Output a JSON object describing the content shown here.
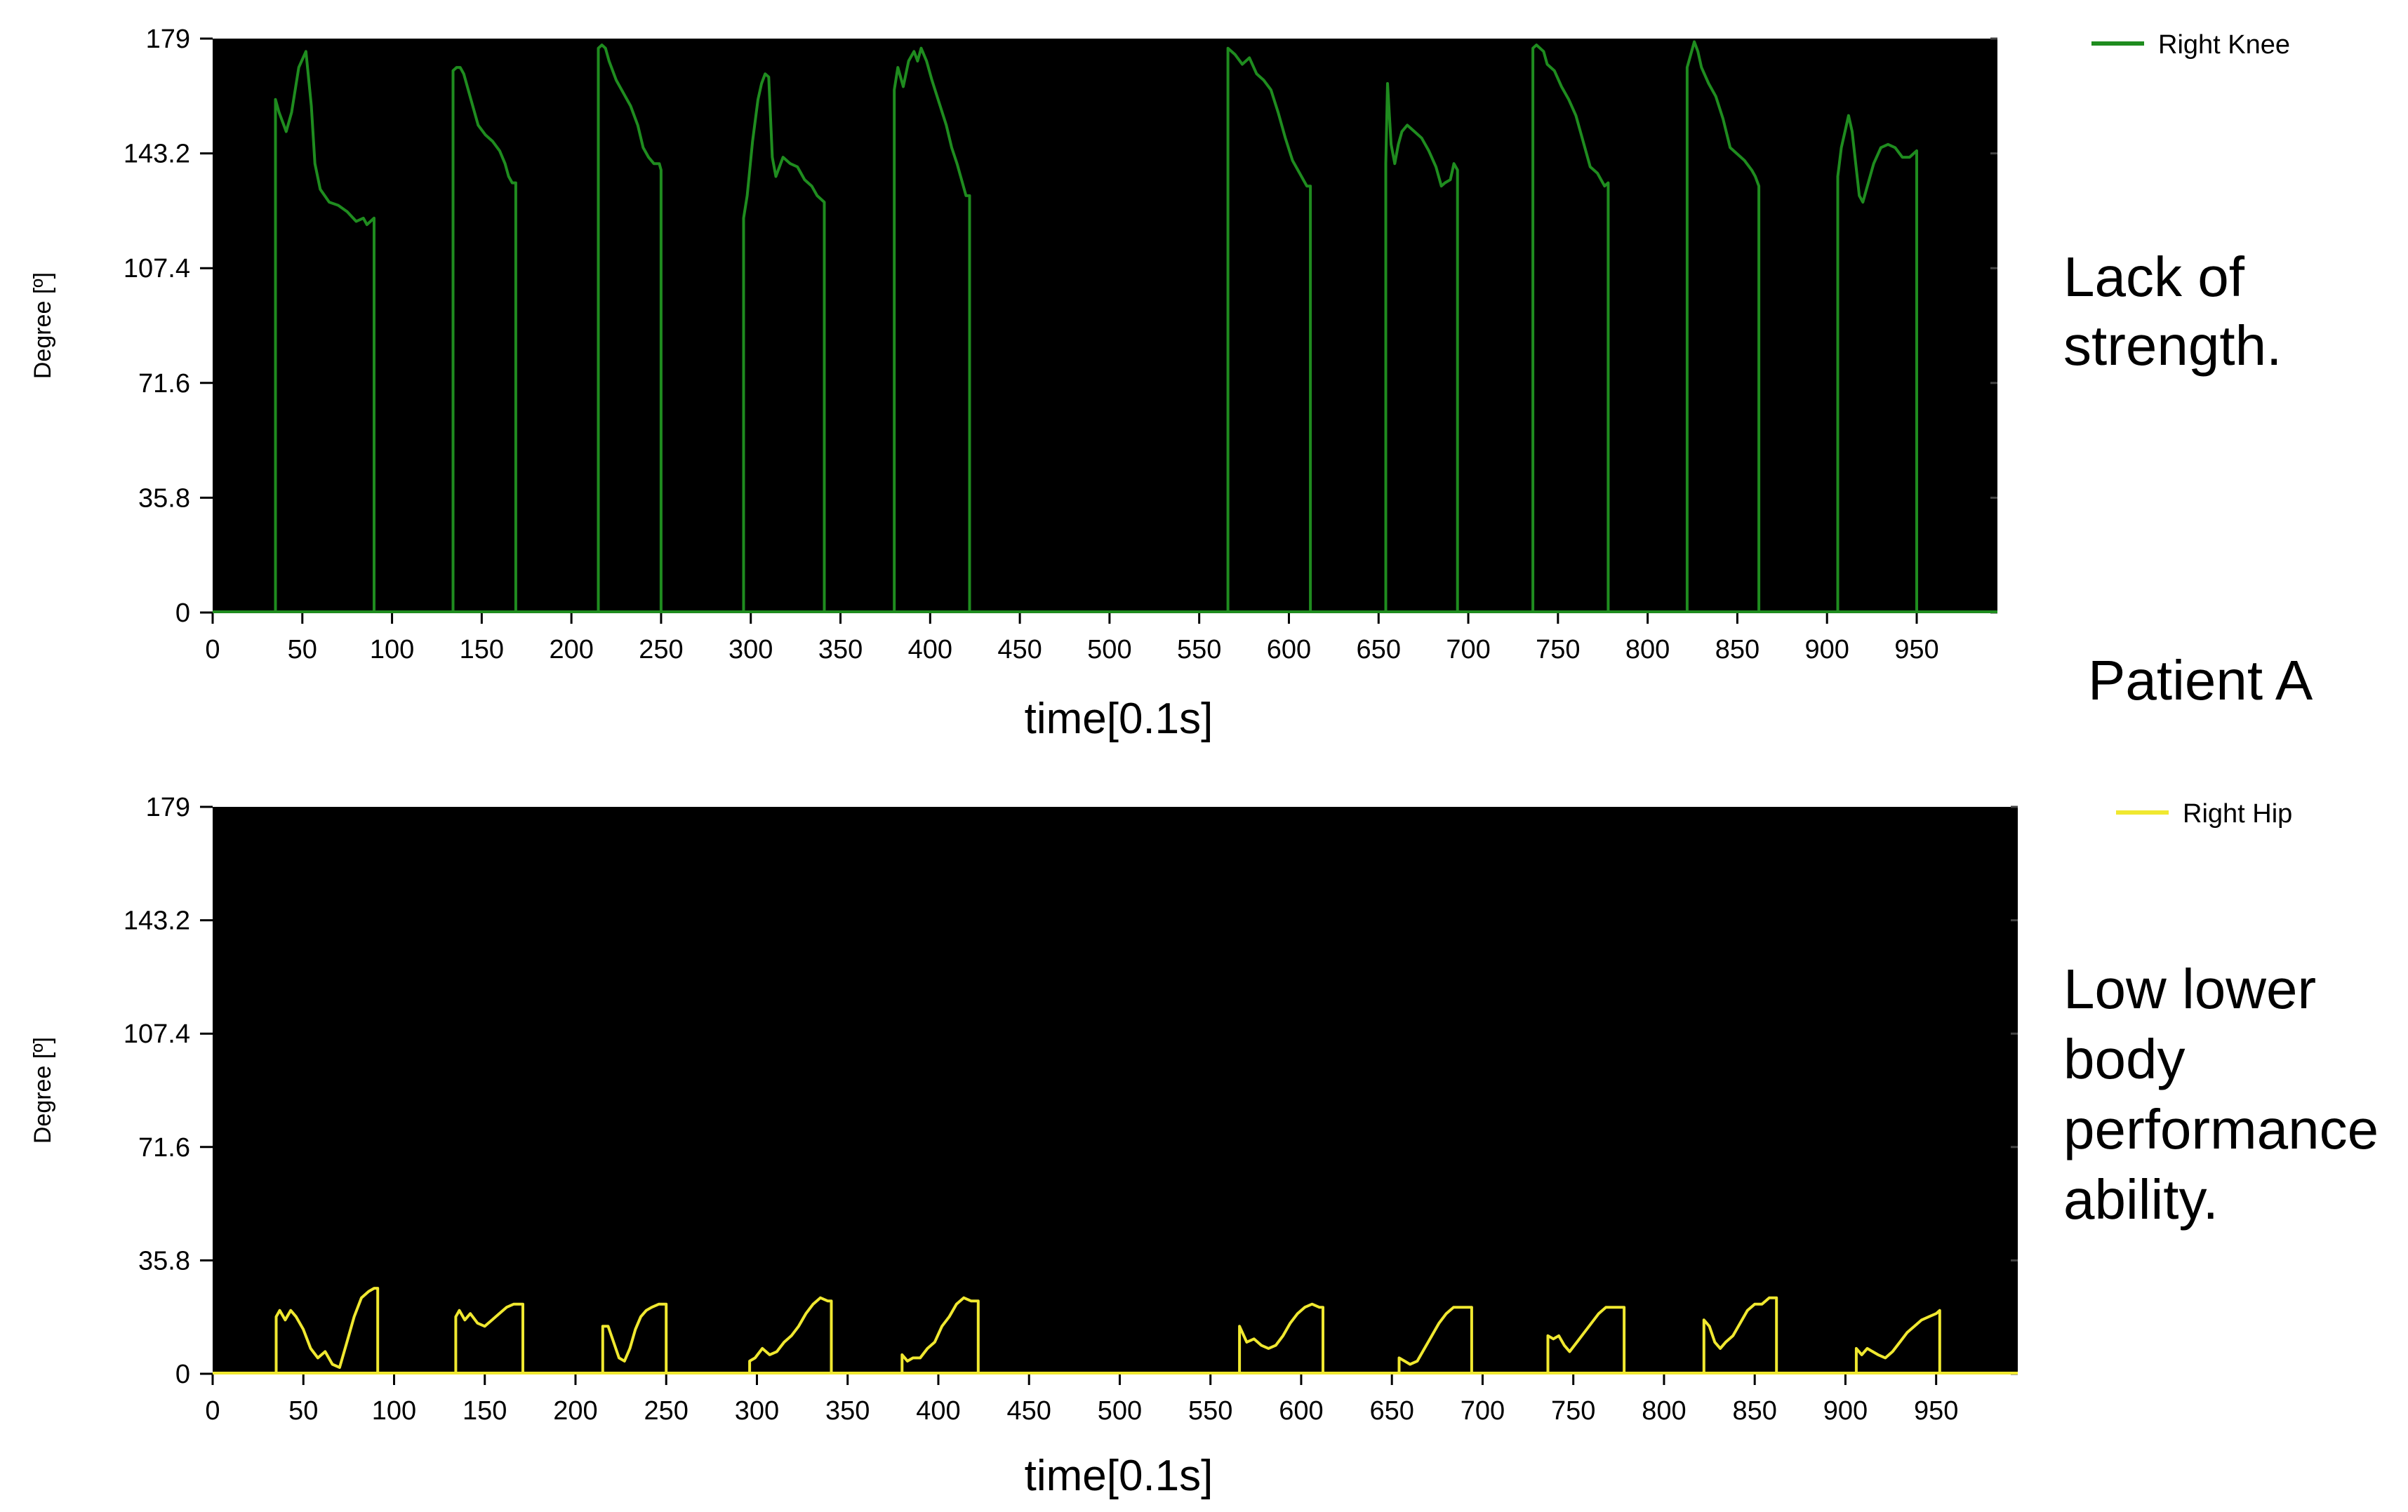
{
  "patient_label": "Patient A",
  "chart_data": [
    {
      "type": "line",
      "id": "knee",
      "xlabel": "time[0.1s]",
      "ylabel": "Degree [º]",
      "xlim": [
        0,
        995
      ],
      "ylim": [
        0,
        179
      ],
      "xticks": [
        0,
        50,
        100,
        150,
        200,
        250,
        300,
        350,
        400,
        450,
        500,
        550,
        600,
        650,
        700,
        750,
        800,
        850,
        900,
        950
      ],
      "yticks": [
        "0",
        "35.8",
        "71.6",
        "107.4",
        "143.2",
        "179"
      ],
      "background": "#000000",
      "legend_position": "top-right, outside plot",
      "series": [
        {
          "name": "Right Knee",
          "color": "#1f8c1f",
          "segments": [
            {
              "x": [
                35,
                35,
                37,
                41,
                44,
                48,
                52,
                55,
                57,
                60,
                65,
                70,
                75,
                80,
                84,
                86,
                88,
                90,
                90
              ],
              "y": [
                0,
                160,
                156,
                150,
                156,
                170,
                175,
                158,
                140,
                132,
                128,
                127,
                125,
                122,
                123,
                121,
                122,
                123,
                0
              ]
            },
            {
              "x": [
                134,
                134,
                136,
                138,
                140,
                144,
                148,
                152,
                156,
                160,
                163,
                165,
                167,
                169,
                169
              ],
              "y": [
                0,
                169,
                170,
                170,
                168,
                160,
                152,
                149,
                147,
                144,
                140,
                136,
                134,
                134,
                0
              ]
            },
            {
              "x": [
                215,
                215,
                217,
                219,
                221,
                225,
                229,
                233,
                237,
                240,
                243,
                246,
                249,
                250,
                250
              ],
              "y": [
                0,
                176,
                177,
                176,
                172,
                166,
                162,
                158,
                152,
                145,
                142,
                140,
                140,
                138,
                0
              ]
            },
            {
              "x": [
                296,
                296,
                298,
                301,
                304,
                306,
                308,
                310,
                312,
                314,
                318,
                322,
                326,
                330,
                334,
                337,
                341,
                341
              ],
              "y": [
                0,
                123,
                130,
                147,
                160,
                165,
                168,
                167,
                142,
                136,
                142,
                140,
                139,
                135,
                133,
                130,
                128,
                0
              ]
            },
            {
              "x": [
                380,
                380,
                382,
                385,
                388,
                391,
                393,
                395,
                398,
                401,
                405,
                409,
                412,
                415,
                418,
                420,
                422,
                422
              ],
              "y": [
                0,
                163,
                170,
                164,
                172,
                175,
                172,
                176,
                172,
                166,
                159,
                152,
                145,
                140,
                134,
                130,
                130,
                0
              ]
            },
            {
              "x": [
                566,
                566,
                570,
                574,
                578,
                582,
                586,
                590,
                594,
                598,
                602,
                606,
                610,
                612,
                612
              ],
              "y": [
                0,
                176,
                174,
                171,
                173,
                168,
                166,
                163,
                156,
                148,
                141,
                137,
                133,
                133,
                0
              ]
            },
            {
              "x": [
                654,
                654,
                655,
                657,
                659,
                661,
                663,
                666,
                670,
                674,
                678,
                682,
                685,
                687,
                690,
                692,
                694,
                694
              ],
              "y": [
                0,
                140,
                165,
                146,
                140,
                146,
                150,
                152,
                150,
                148,
                144,
                139,
                133,
                134,
                135,
                140,
                138,
                0
              ]
            },
            {
              "x": [
                736,
                736,
                738,
                740,
                742,
                744,
                748,
                752,
                756,
                760,
                764,
                768,
                772,
                776,
                778,
                778
              ],
              "y": [
                0,
                176,
                177,
                176,
                175,
                171,
                169,
                164,
                160,
                155,
                147,
                139,
                137,
                133,
                134,
                0
              ]
            },
            {
              "x": [
                822,
                822,
                824,
                826,
                828,
                830,
                834,
                838,
                842,
                846,
                850,
                854,
                858,
                860,
                862,
                862
              ],
              "y": [
                0,
                170,
                174,
                178,
                175,
                170,
                165,
                161,
                154,
                145,
                143,
                141,
                138,
                136,
                133,
                0
              ]
            },
            {
              "x": [
                906,
                906,
                908,
                910,
                912,
                914,
                916,
                918,
                920,
                922,
                926,
                930,
                934,
                938,
                942,
                946,
                950,
                950
              ],
              "y": [
                0,
                136,
                145,
                150,
                155,
                150,
                140,
                130,
                128,
                132,
                140,
                145,
                146,
                145,
                142,
                142,
                144,
                0
              ]
            }
          ]
        }
      ],
      "annotation": [
        "Lack of",
        "strength."
      ]
    },
    {
      "type": "line",
      "id": "hip",
      "xlabel": "time[0.1s]",
      "ylabel": "Degree [º]",
      "xlim": [
        0,
        995
      ],
      "ylim": [
        0,
        179
      ],
      "xticks": [
        0,
        50,
        100,
        150,
        200,
        250,
        300,
        350,
        400,
        450,
        500,
        550,
        600,
        650,
        700,
        750,
        800,
        850,
        900,
        950
      ],
      "yticks": [
        "0",
        "35.8",
        "71.6",
        "107.4",
        "143.2",
        "179"
      ],
      "background": "#000000",
      "legend_position": "top-right, outside plot",
      "series": [
        {
          "name": "Right Hip",
          "color": "#f0e830",
          "segments": [
            {
              "x": [
                35,
                35,
                37,
                40,
                43,
                46,
                50,
                54,
                58,
                62,
                66,
                70,
                74,
                78,
                82,
                86,
                89,
                91,
                91
              ],
              "y": [
                0,
                18,
                20,
                17,
                20,
                18,
                14,
                8,
                5,
                7,
                3,
                2,
                10,
                18,
                24,
                26,
                27,
                27,
                0
              ]
            },
            {
              "x": [
                134,
                134,
                136,
                139,
                142,
                146,
                150,
                154,
                158,
                162,
                166,
                169,
                171,
                171
              ],
              "y": [
                0,
                18,
                20,
                17,
                19,
                16,
                15,
                17,
                19,
                21,
                22,
                22,
                22,
                0
              ]
            },
            {
              "x": [
                215,
                215,
                218,
                221,
                224,
                227,
                230,
                233,
                236,
                239,
                242,
                246,
                250,
                250
              ],
              "y": [
                0,
                15,
                15,
                10,
                5,
                4,
                8,
                14,
                18,
                20,
                21,
                22,
                22,
                0
              ]
            },
            {
              "x": [
                296,
                296,
                299,
                303,
                307,
                311,
                315,
                319,
                323,
                327,
                331,
                335,
                339,
                341,
                341
              ],
              "y": [
                0,
                4,
                5,
                8,
                6,
                7,
                10,
                12,
                15,
                19,
                22,
                24,
                23,
                23,
                0
              ]
            },
            {
              "x": [
                380,
                380,
                383,
                386,
                390,
                394,
                398,
                402,
                406,
                410,
                414,
                418,
                422,
                422
              ],
              "y": [
                0,
                6,
                4,
                5,
                5,
                8,
                10,
                15,
                18,
                22,
                24,
                23,
                23,
                0
              ]
            },
            {
              "x": [
                566,
                566,
                570,
                574,
                578,
                582,
                586,
                590,
                594,
                598,
                602,
                606,
                610,
                612,
                612
              ],
              "y": [
                0,
                15,
                10,
                11,
                9,
                8,
                9,
                12,
                16,
                19,
                21,
                22,
                21,
                21,
                0
              ]
            },
            {
              "x": [
                654,
                654,
                657,
                660,
                664,
                668,
                672,
                676,
                680,
                684,
                688,
                692,
                694,
                694
              ],
              "y": [
                0,
                5,
                4,
                3,
                4,
                8,
                12,
                16,
                19,
                21,
                21,
                21,
                21,
                0
              ]
            },
            {
              "x": [
                736,
                736,
                739,
                742,
                745,
                748,
                752,
                756,
                760,
                764,
                768,
                772,
                776,
                778,
                778
              ],
              "y": [
                0,
                12,
                11,
                12,
                9,
                7,
                10,
                13,
                16,
                19,
                21,
                21,
                21,
                21,
                0
              ]
            },
            {
              "x": [
                822,
                822,
                825,
                828,
                831,
                834,
                838,
                842,
                846,
                850,
                854,
                858,
                860,
                862,
                862
              ],
              "y": [
                0,
                17,
                15,
                10,
                8,
                10,
                12,
                16,
                20,
                22,
                22,
                24,
                24,
                24,
                0
              ]
            },
            {
              "x": [
                906,
                906,
                909,
                912,
                915,
                918,
                922,
                926,
                930,
                934,
                938,
                942,
                946,
                950,
                952,
                952
              ],
              "y": [
                0,
                8,
                6,
                8,
                7,
                6,
                5,
                7,
                10,
                13,
                15,
                17,
                18,
                19,
                20,
                0
              ]
            }
          ]
        }
      ],
      "annotation": [
        "Low lower",
        "body",
        "performance",
        "ability."
      ]
    }
  ]
}
